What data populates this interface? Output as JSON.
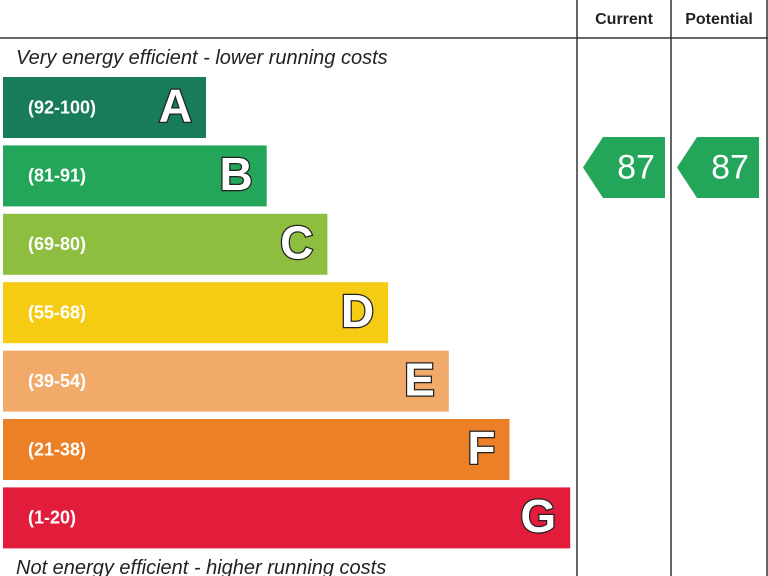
{
  "header": {
    "current": "Current",
    "potential": "Potential"
  },
  "top_note": "Very energy efficient - lower running costs",
  "bottom_note": "Not energy efficient - higher running costs",
  "bands": [
    {
      "range": "(92-100)",
      "letter": "A",
      "color": "#177c57"
    },
    {
      "range": "(81-91)",
      "letter": "B",
      "color": "#23a55a"
    },
    {
      "range": "(69-80)",
      "letter": "C",
      "color": "#8dbe3f"
    },
    {
      "range": "(55-68)",
      "letter": "D",
      "color": "#f5cb14"
    },
    {
      "range": "(39-54)",
      "letter": "E",
      "color": "#f2aa6b"
    },
    {
      "range": "(21-38)",
      "letter": "F",
      "color": "#ec8026"
    },
    {
      "range": "(1-20)",
      "letter": "G",
      "color": "#e21d3c"
    }
  ],
  "ratings": {
    "current": 87,
    "potential": 87,
    "color": "#23a55a"
  }
}
